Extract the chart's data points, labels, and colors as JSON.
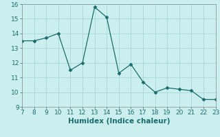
{
  "x": [
    7,
    8,
    9,
    10,
    11,
    12,
    13,
    14,
    15,
    16,
    17,
    18,
    19,
    20,
    21,
    22,
    23
  ],
  "y": [
    13.5,
    13.5,
    13.7,
    14.0,
    11.5,
    12.0,
    15.8,
    15.1,
    11.3,
    11.9,
    10.7,
    10.0,
    10.3,
    10.2,
    10.1,
    9.5,
    9.5
  ],
  "xlabel": "Humidex (Indice chaleur)",
  "xlim": [
    7,
    23
  ],
  "ylim": [
    9,
    16
  ],
  "xticks": [
    7,
    8,
    9,
    10,
    11,
    12,
    13,
    14,
    15,
    16,
    17,
    18,
    19,
    20,
    21,
    22,
    23
  ],
  "yticks": [
    9,
    10,
    11,
    12,
    13,
    14,
    15,
    16
  ],
  "line_color": "#1a6b6b",
  "marker": "D",
  "marker_size": 2.5,
  "bg_color": "#cbefef",
  "grid_color": "#a8d8d8",
  "tick_fontsize": 6.5,
  "label_fontsize": 7.5
}
